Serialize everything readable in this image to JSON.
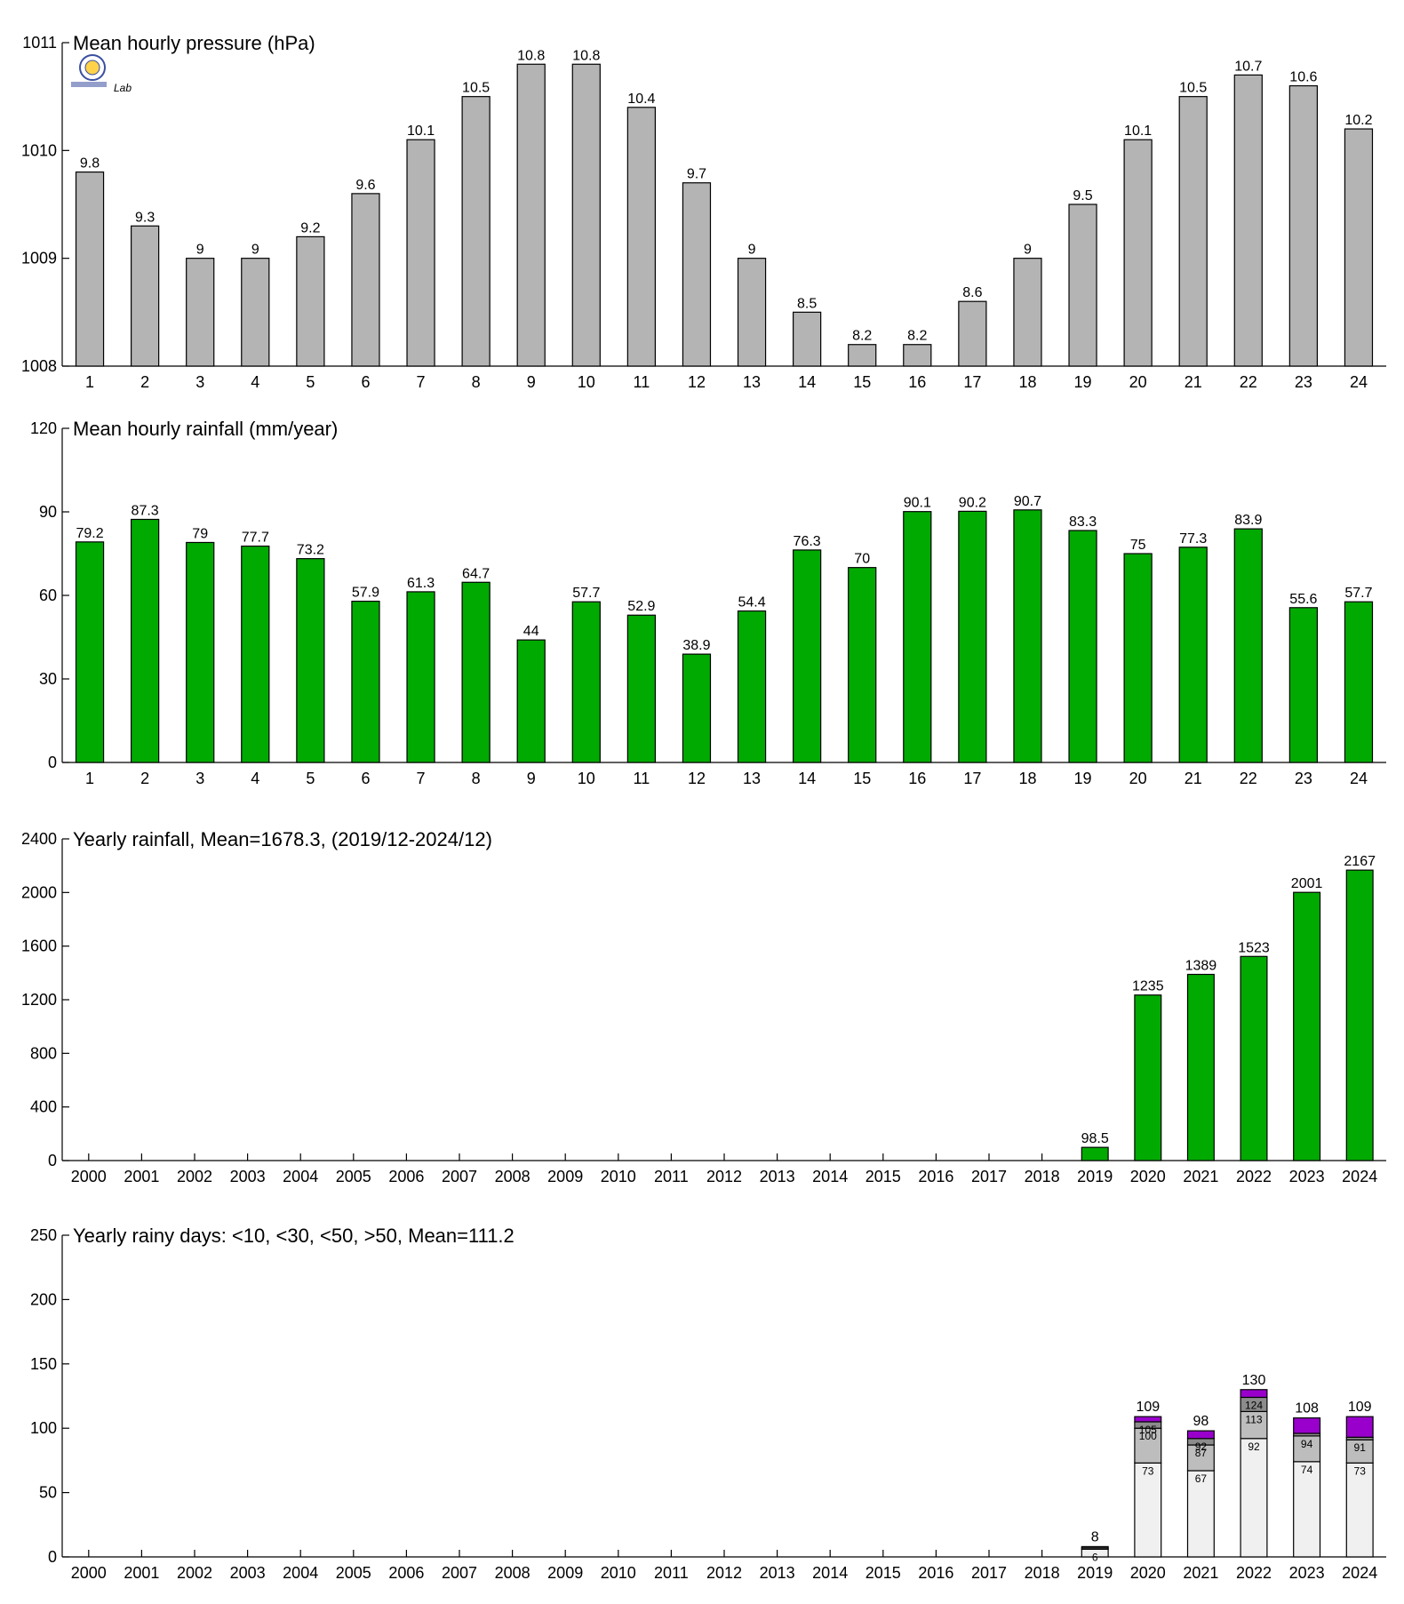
{
  "chart_data": [
    {
      "type": "bar",
      "title": "Mean hourly pressure (hPa)",
      "categories": [
        "1",
        "2",
        "3",
        "4",
        "5",
        "6",
        "7",
        "8",
        "9",
        "10",
        "11",
        "12",
        "13",
        "14",
        "15",
        "16",
        "17",
        "18",
        "19",
        "20",
        "21",
        "22",
        "23",
        "24"
      ],
      "values": [
        1009.8,
        1009.3,
        1009,
        1009,
        1009.2,
        1009.6,
        1010.1,
        1010.5,
        1010.8,
        1010.8,
        1010.4,
        1009.7,
        1009,
        1008.5,
        1008.2,
        1008.2,
        1008.6,
        1009,
        1009.5,
        1010.1,
        1010.5,
        1010.7,
        1010.6,
        1010.2
      ],
      "labels": [
        "9.8",
        "9.3",
        "9",
        "9",
        "9.2",
        "9.6",
        "10.1",
        "10.5",
        "10.8",
        "10.8",
        "10.4",
        "9.7",
        "9",
        "8.5",
        "8.2",
        "8.2",
        "8.6",
        "9",
        "9.5",
        "10.1",
        "10.5",
        "10.7",
        "10.6",
        "10.2"
      ],
      "yticks": [
        "1008",
        "1009",
        "1010",
        "1011"
      ],
      "ylim": [
        1008,
        1011
      ],
      "color": "#b4b4b4"
    },
    {
      "type": "bar",
      "title": "Mean hourly rainfall (mm/year)",
      "categories": [
        "1",
        "2",
        "3",
        "4",
        "5",
        "6",
        "7",
        "8",
        "9",
        "10",
        "11",
        "12",
        "13",
        "14",
        "15",
        "16",
        "17",
        "18",
        "19",
        "20",
        "21",
        "22",
        "23",
        "24"
      ],
      "values": [
        79.2,
        87.3,
        79,
        77.7,
        73.2,
        57.9,
        61.3,
        64.7,
        44,
        57.7,
        52.9,
        38.9,
        54.4,
        76.3,
        70,
        90.1,
        90.2,
        90.7,
        83.3,
        75,
        77.3,
        83.9,
        55.6,
        57.7
      ],
      "labels": [
        "79.2",
        "87.3",
        "79",
        "77.7",
        "73.2",
        "57.9",
        "61.3",
        "64.7",
        "44",
        "57.7",
        "52.9",
        "38.9",
        "54.4",
        "76.3",
        "70",
        "90.1",
        "90.2",
        "90.7",
        "83.3",
        "75",
        "77.3",
        "83.9",
        "55.6",
        "57.7"
      ],
      "yticks": [
        "0",
        "30",
        "60",
        "90",
        "120"
      ],
      "ylim": [
        0,
        120
      ],
      "color": "#00aa00"
    },
    {
      "type": "bar",
      "title": "Yearly rainfall, Mean=1678.3, (2019/12-2024/12)",
      "categories": [
        "2000",
        "2001",
        "2002",
        "2003",
        "2004",
        "2005",
        "2006",
        "2007",
        "2008",
        "2009",
        "2010",
        "2011",
        "2012",
        "2013",
        "2014",
        "2015",
        "2016",
        "2017",
        "2018",
        "2019",
        "2020",
        "2021",
        "2022",
        "2023",
        "2024"
      ],
      "values": [
        null,
        null,
        null,
        null,
        null,
        null,
        null,
        null,
        null,
        null,
        null,
        null,
        null,
        null,
        null,
        null,
        null,
        null,
        null,
        98.5,
        1235,
        1389,
        1523,
        2001,
        2167
      ],
      "labels": [
        "",
        "",
        "",
        "",
        "",
        "",
        "",
        "",
        "",
        "",
        "",
        "",
        "",
        "",
        "",
        "",
        "",
        "",
        "",
        "98.5",
        "1235",
        "1389",
        "1523",
        "2001",
        "2167"
      ],
      "yticks": [
        "0",
        "400",
        "800",
        "1200",
        "1600",
        "2000",
        "2400"
      ],
      "ylim": [
        0,
        2400
      ],
      "color": "#00aa00"
    },
    {
      "type": "bar",
      "title": "Yearly rainy days: <10, <30, <50, >50, Mean=111.2",
      "categories": [
        "2000",
        "2001",
        "2002",
        "2003",
        "2004",
        "2005",
        "2006",
        "2007",
        "2008",
        "2009",
        "2010",
        "2011",
        "2012",
        "2013",
        "2014",
        "2015",
        "2016",
        "2017",
        "2018",
        "2019",
        "2020",
        "2021",
        "2022",
        "2023",
        "2024"
      ],
      "stacked": true,
      "stacks": {
        "2019": {
          "lt10": 6,
          "lt30": 7,
          "lt50": 8,
          "total": 8
        },
        "2020": {
          "lt10": 73,
          "lt30": 100,
          "lt50": 105,
          "total": 109
        },
        "2021": {
          "lt10": 67,
          "lt30": 87,
          "lt50": 92,
          "total": 98
        },
        "2022": {
          "lt10": 92,
          "lt30": 113,
          "lt50": 124,
          "total": 130
        },
        "2023": {
          "lt10": 74,
          "lt30": 94,
          "lt50": 96,
          "total": 108
        },
        "2024": {
          "lt10": 73,
          "lt30": 91,
          "lt50": 93,
          "total": 109
        }
      },
      "segment_labels": {
        "2019": [
          "6",
          "",
          ""
        ],
        "2020": [
          "73",
          "100",
          "105"
        ],
        "2021": [
          "67",
          "87",
          "92"
        ],
        "2022": [
          "92",
          "113",
          "124"
        ],
        "2023": [
          "74",
          "94",
          ""
        ],
        "2024": [
          "73",
          "91",
          ""
        ]
      },
      "total_labels": {
        "2019": "8",
        "2020": "109",
        "2021": "98",
        "2022": "130",
        "2023": "108",
        "2024": "109"
      },
      "yticks": [
        "0",
        "50",
        "100",
        "150",
        "200",
        "250"
      ],
      "ylim": [
        0,
        250
      ],
      "colors": {
        "lt10": "#f0f0f0",
        "lt30": "#bdbdbd",
        "lt50": "#8c8c8c",
        "gt50": "#9900cc"
      }
    }
  ],
  "logo": {
    "text": "Lab"
  }
}
